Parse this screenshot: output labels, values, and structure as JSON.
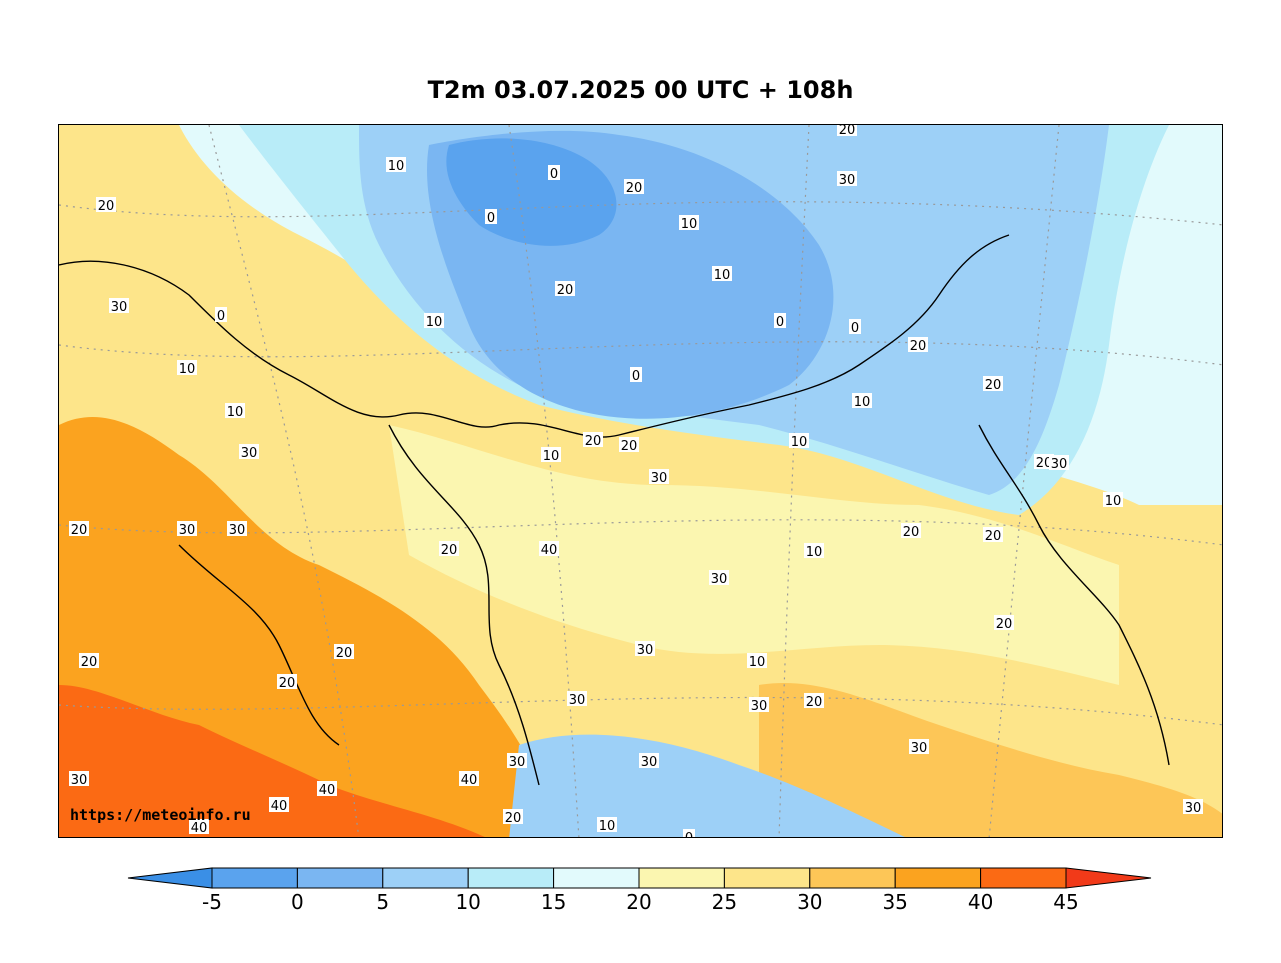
{
  "title": "T2m 03.07.2025 00 UTC + 108h",
  "credit": "https://meteoinfo.ru",
  "colorbar": {
    "ticks": [
      "-5",
      "0",
      "5",
      "10",
      "15",
      "20",
      "25",
      "30",
      "35",
      "40",
      "45"
    ],
    "colors": [
      "#3a8fe6",
      "#5aa3ee",
      "#7ab6f2",
      "#9dd0f7",
      "#b8ecf8",
      "#e2fafc",
      "#fbf6b0",
      "#fde58a",
      "#fdc657",
      "#fba31f",
      "#fb6a14",
      "#f13a19"
    ]
  },
  "contour_labels": [
    "10",
    "0",
    "20",
    "0",
    "10",
    "20",
    "10",
    "20",
    "30",
    "30",
    "0",
    "20",
    "10",
    "0",
    "0",
    "0",
    "10",
    "20",
    "10",
    "20",
    "10",
    "30",
    "10",
    "30",
    "10",
    "20",
    "10",
    "20",
    "20",
    "30",
    "20",
    "30",
    "30",
    "20",
    "10",
    "20",
    "20",
    "40",
    "30",
    "20",
    "20",
    "20",
    "30",
    "10",
    "20",
    "30",
    "20",
    "30",
    "30",
    "30",
    "40",
    "40",
    "30",
    "40",
    "20",
    "10",
    "0",
    "40",
    "30",
    "30"
  ]
}
